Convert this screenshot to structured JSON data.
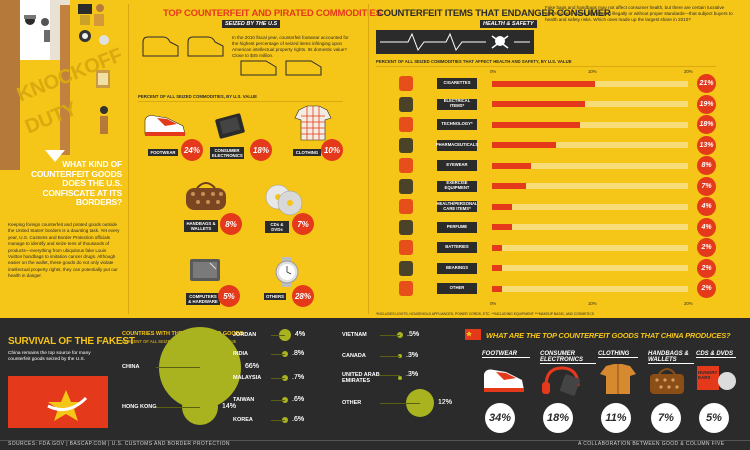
{
  "left": {
    "hero_1": "KNOCKOFF",
    "hero_2": "DUTY",
    "question": "WHAT KIND OF COUNTERFEIT GOODS DOES THE U.S. CONFISCATE AT ITS BORDERS?",
    "intro": "Keeping foreign counterfeit and pirated goods outside the United States' borders is a daunting task. Yet every year, U.S. Customs and Border Protection officials manage to identify and seize tens of thousands of products—everything from ubiquitous fake Louis Vuitton handbags to imitation cancer drugs. Although easier on the wallet, these goods do not only violate intellectual property rights; they can potentially put our health in danger."
  },
  "seized": {
    "title": "TOP COUNTERFEIT AND PIRATED COMMODITIES",
    "subtitle": "SEIZED BY THE U.S",
    "text": "In the 2010 fiscal year, counterfeit footwear accounted for the highest percentage of seized items infringing upon American intellectual property rights. Its domestic value? Close to $45 million.",
    "pct_label": "PERCENT OF ALL SEIZED COMMODITIES, BY U.S. VALUE",
    "items": [
      {
        "name": "FOOTWEAR",
        "pct": "24%",
        "icon": "sneaker-icon"
      },
      {
        "name": "CONSUMER ELECTRONICS",
        "pct": "18%",
        "icon": "ereader-icon"
      },
      {
        "name": "CLOTHING",
        "pct": "10%",
        "icon": "shirt-icon"
      },
      {
        "name": "HANDBAGS & WALLETS",
        "pct": "8%",
        "icon": "handbag-icon"
      },
      {
        "name": "CDs & DVDs",
        "pct": "7%",
        "icon": "disc-icon"
      },
      {
        "name": "COMPUTERS & HARDWARE",
        "pct": "5%",
        "icon": "computer-icon"
      },
      {
        "name": "OTHERS",
        "pct": "28%",
        "icon": "watch-icon"
      }
    ]
  },
  "health": {
    "title": "COUNTERFEIT ITEMS THAT ENDANGER CONSUMER",
    "subtitle": "HEALTH & SAFETY",
    "text": "Fake bags and handbags may not affect consumer health, but there are certain lucrative commodities—when reproduced illegally or without proper standards—that subject buyers to health and safety risks. Which ones made up the largest share in 2010?",
    "pct_label": "PERCENT OF ALL SEIZED COMMODITIES THAT AFFECT HEALTH AND SAFETY, BY U.S. VALUE",
    "axis": [
      "0%",
      "10%",
      "20%"
    ],
    "footnote": "*INCLUDES LIGHTS, HOUSEHOLD APPLIANCES, POWER CORDS, ETC.   **INCLUDING EQUIPMENT   ***MAKEUP BASIC, AND COSMETICS",
    "rows": [
      {
        "name": "CIGARETTES",
        "value": 21,
        "pct": "21%"
      },
      {
        "name": "ELECTRICAL ITEMS*",
        "value": 19,
        "pct": "19%"
      },
      {
        "name": "TECHNOLOGY*",
        "value": 18,
        "pct": "18%"
      },
      {
        "name": "PHARMACEUTICALS",
        "value": 13,
        "pct": "13%"
      },
      {
        "name": "EYEWEAR",
        "value": 8,
        "pct": "8%"
      },
      {
        "name": "EXERCISE EQUIPMENT",
        "value": 7,
        "pct": "7%"
      },
      {
        "name": "HEALTH/PERSONAL CARE ITEMS*",
        "value": 4,
        "pct": "4%"
      },
      {
        "name": "PERFUME",
        "value": 4,
        "pct": "4%"
      },
      {
        "name": "BATTERIES",
        "value": 2,
        "pct": "2%"
      },
      {
        "name": "BEARINGS",
        "value": 2,
        "pct": "2%"
      },
      {
        "name": "OTHER",
        "value": 2,
        "pct": "2%"
      }
    ]
  },
  "survival": {
    "title": "SURVIVAL OF THE FAKEST",
    "text": "China remains the top source for many counterfeit goods seized by the U.S.",
    "countries_title": "COUNTRIES WITH THE MOST SEIZED GOODS",
    "countries_sub": "PERCENT OF ALL SEIZED COMMODITIES, BY U.S. VALUE",
    "countries": [
      {
        "name": "CHINA",
        "pct": "66%"
      },
      {
        "name": "HONG KONG",
        "pct": "14%"
      },
      {
        "name": "JORDAN",
        "pct": "4%"
      },
      {
        "name": "INDIA",
        "pct": ".8%"
      },
      {
        "name": "MALAYSIA",
        "pct": ".7%"
      },
      {
        "name": "TAIWAN",
        "pct": ".6%"
      },
      {
        "name": "KOREA",
        "pct": ".6%"
      },
      {
        "name": "VIETNAM",
        "pct": ".5%"
      },
      {
        "name": "CANADA",
        "pct": ".3%"
      },
      {
        "name": "UNITED ARAB EMIRATES",
        "pct": ".3%"
      },
      {
        "name": "OTHER",
        "pct": "12%"
      }
    ]
  },
  "china": {
    "title": "WHAT ARE THE TOP COUNTERFEIT GOODS THAT CHINA PRODUCES?",
    "items": [
      {
        "name": "FOOTWEAR",
        "pct": "34%"
      },
      {
        "name": "CONSUMER ELECTRONICS",
        "pct": "18%"
      },
      {
        "name": "CLOTHING",
        "pct": "11%"
      },
      {
        "name": "HANDBAGS & WALLETS",
        "pct": "7%"
      },
      {
        "name": "CDS & DVDS",
        "pct": "5%"
      }
    ],
    "album_text": "HUNGRY EARS"
  },
  "footer": {
    "sources": "SOURCES: FDA.GOV  |  BASCAP.COM  |  U.S. CUSTOMS AND BORDER PROTECTION",
    "credit": "A COLLABORATION BETWEEN GOOD & COLUMN FIVE"
  },
  "colors": {
    "accent": "#e4391b",
    "background": "#f5c518",
    "dark": "#2b2b2b",
    "olive": "#a9b31f"
  }
}
